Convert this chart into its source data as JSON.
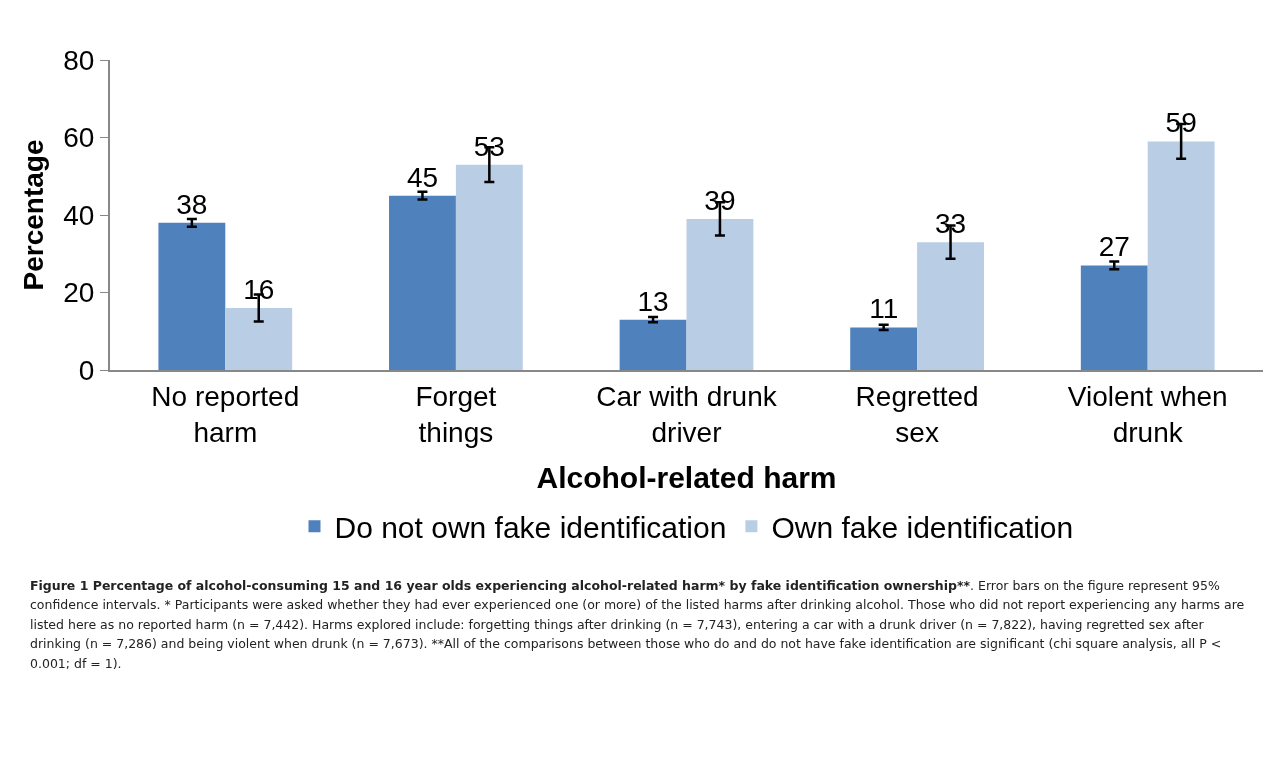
{
  "chart_data": {
    "type": "bar",
    "title": "Figure 1 Percentage of alcohol-consuming 15 and 16 year olds experiencing alcohol-related harm* by fake identification ownership**",
    "annotations": [
      ". Error bars on the figure represent 95% confidence intervals. * Participants were asked whether they had ever experienced one (or more) of the listed harms after drinking alcohol. Those who did not report experiencing any harms are listed here as no reported harm (n = 7,442). Harms explored include: forgetting things after drinking (n = 7,743), entering a car with a drunk driver (n = 7,822), having regretted sex after drinking (n = 7,286) and being violent when drunk (n = 7,673). **All of the comparisons between those who do and do not have fake identification are significant (chi square analysis, all P < 0.001; df = 1)."
    ],
    "xlabel": "Alcohol-related harm",
    "ylabel": "Percentage",
    "categories": [
      "No reported harm",
      "Forget things",
      "Car with drunk driver",
      "Regretted sex",
      "Violent when drunk"
    ],
    "series": [
      {
        "name": "Do not own fake identification",
        "color": "#4f81bd",
        "values": [
          38,
          45,
          13,
          11,
          27
        ],
        "errors": [
          1,
          1,
          0.7,
          0.7,
          1
        ]
      },
      {
        "name": "Own fake identification",
        "color": "#b9cde5",
        "values": [
          16,
          53,
          39,
          33,
          59
        ],
        "errors": [
          3.5,
          4.5,
          4.3,
          4.3,
          4.5
        ]
      }
    ],
    "ylim": [
      0,
      80
    ],
    "yticks": [
      0,
      20,
      40,
      60,
      80
    ],
    "grid": false,
    "legend": "bottom",
    "data_labels": true
  }
}
